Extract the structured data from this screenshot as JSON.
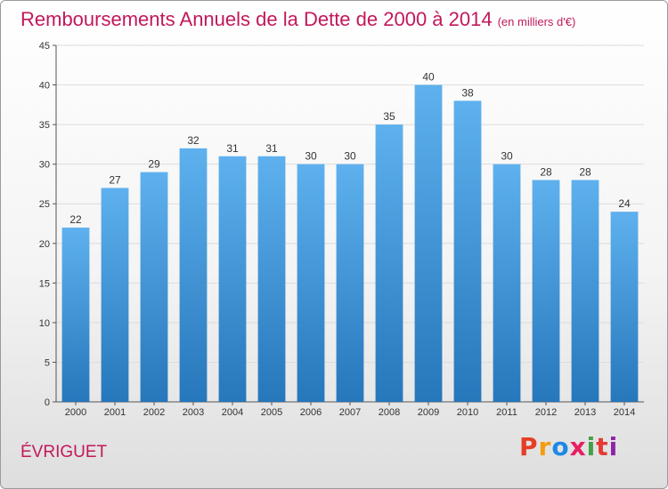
{
  "header": {
    "title": "Remboursements Annuels de la Dette de 2000 à 2014",
    "subtitle": "(en milliers d'€)"
  },
  "footer": {
    "commune": "ÉVRIGUET",
    "brand_letters": [
      "P",
      "r",
      "o",
      "x",
      "i",
      "t",
      "i"
    ],
    "brand_colors": [
      "#e63e26",
      "#f39c12",
      "#1e88e5",
      "#e91e63",
      "#43a047",
      "#e53935",
      "#8e24aa"
    ]
  },
  "chart_data": {
    "type": "bar",
    "title": "Remboursements Annuels de la Dette de 2000 à 2014",
    "subtitle": "(en milliers d'€)",
    "categories": [
      "2000",
      "2001",
      "2002",
      "2003",
      "2004",
      "2005",
      "2006",
      "2007",
      "2008",
      "2009",
      "2010",
      "2011",
      "2012",
      "2013",
      "2014"
    ],
    "values": [
      22,
      27,
      29,
      32,
      31,
      31,
      30,
      30,
      35,
      40,
      38,
      30,
      28,
      28,
      24
    ],
    "ylim": [
      0,
      45
    ],
    "yticks": [
      0,
      5,
      10,
      15,
      20,
      25,
      30,
      35,
      40,
      45
    ],
    "grid": true,
    "bar_color_top": "#5eb1ee",
    "bar_color_bottom": "#2677bb"
  }
}
